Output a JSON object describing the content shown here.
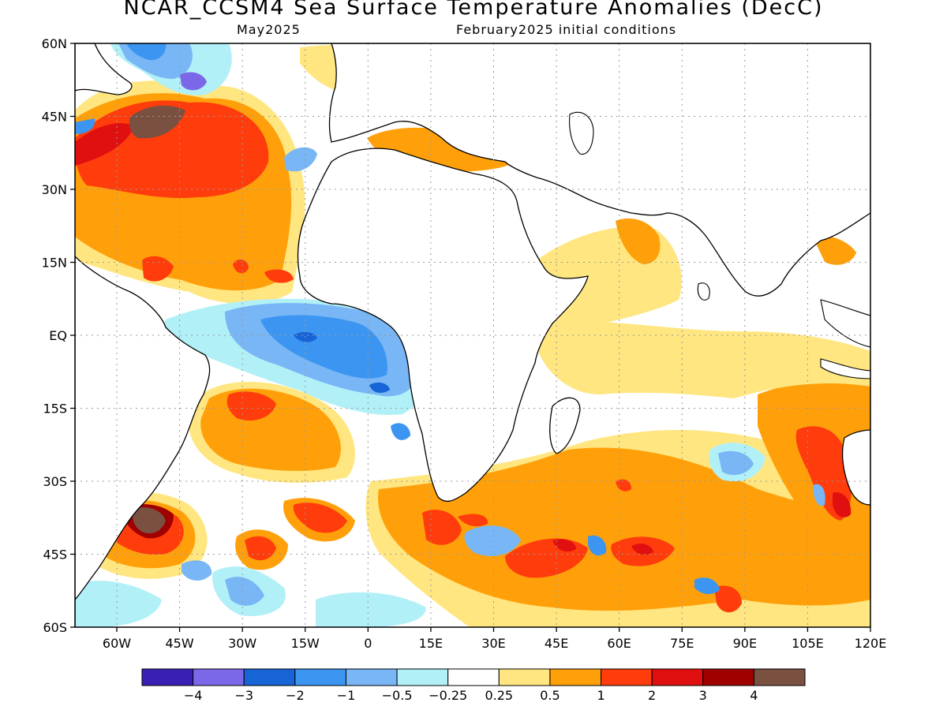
{
  "title": "NCAR_CCSM4 Sea Surface Temperature Anomalies (DecC)",
  "subtitle_left": "May2025",
  "subtitle_right": "February2025 initial conditions",
  "lat_labels": [
    "60N",
    "45N",
    "30N",
    "15N",
    "EQ",
    "15S",
    "30S",
    "45S",
    "60S"
  ],
  "lon_labels": [
    "60W",
    "45W",
    "30W",
    "15W",
    "0",
    "15E",
    "30E",
    "45E",
    "60E",
    "75E",
    "90E",
    "105E",
    "120E"
  ],
  "colorbar": {
    "colors": [
      "#3a1fb4",
      "#7b68e8",
      "#1664d6",
      "#3c95f0",
      "#78b6f5",
      "#b2f0f8",
      "#ffffff",
      "#ffe680",
      "#ffa00a",
      "#ff3c0c",
      "#e01010",
      "#a00000",
      "#7a5040"
    ],
    "labels": [
      "−4",
      "−3",
      "−2",
      "−1",
      "−0.5",
      "−0.25",
      "0.25",
      "0.5",
      "1",
      "2",
      "3",
      "4"
    ]
  },
  "map_data": {
    "region": "Atlantic and Indian Oceans, 70W–120E, 60S–60N",
    "features": [
      {
        "id": "feature-nw-atlantic-warm",
        "level": "1 to 4",
        "color": "#ffa00a"
      },
      {
        "id": "feature-equatorial-atlantic-cold",
        "level": "-2 to -0.5",
        "color": "#78b6f5"
      },
      {
        "id": "feature-southwest-atlantic-warm",
        "level": "1 to 4",
        "color": "#ffa00a"
      },
      {
        "id": "feature-southern-indian-warm",
        "level": "0.5 to 2",
        "color": "#ffa00a"
      },
      {
        "id": "feature-east-indian-warm",
        "level": "1 to 2",
        "color": "#ff3c0c"
      }
    ]
  }
}
